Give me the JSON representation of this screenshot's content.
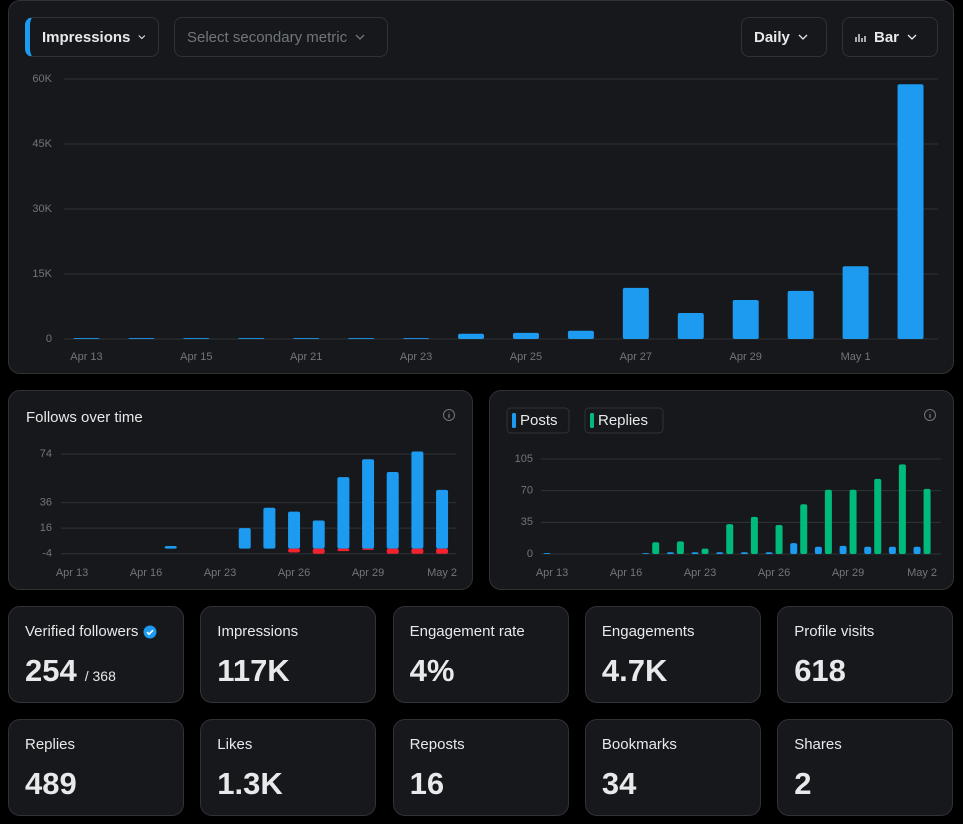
{
  "controls": {
    "primary_metric": "Impressions",
    "secondary_metric": "Select secondary metric",
    "interval": "Daily",
    "chart_type": "Bar"
  },
  "chart_data": [
    {
      "type": "bar",
      "categories": [
        "Apr 13",
        null,
        "Apr 15",
        null,
        "Apr 21",
        null,
        "Apr 23",
        null,
        "Apr 25",
        null,
        "Apr 27",
        null,
        "Apr 29",
        null,
        "May 1",
        null
      ],
      "values": [
        200,
        200,
        200,
        200,
        200,
        200,
        200,
        1200,
        1400,
        1900,
        11800,
        6000,
        9000,
        11100,
        16800,
        58800
      ],
      "color": "#1d9bf0",
      "ylim": [
        0,
        60000
      ],
      "yticks": [
        0,
        {
          "value": 15000,
          "label": "15K"
        },
        {
          "value": 30000,
          "label": "30K"
        },
        {
          "value": 45000,
          "label": "45K"
        },
        {
          "value": 60000,
          "label": "60K"
        }
      ],
      "grid": true
    },
    {
      "type": "bar",
      "title": "Follows over time",
      "stacked": true,
      "categories": [
        "Apr 13",
        null,
        null,
        "Apr 16",
        null,
        null,
        "Apr 23",
        null,
        null,
        "Apr 26",
        null,
        null,
        "Apr 29",
        null,
        null,
        "May 2"
      ],
      "series": [
        {
          "color": "#1d9bf0",
          "values": [
            0,
            0,
            0,
            0,
            2,
            0,
            0,
            16,
            32,
            29,
            22,
            56,
            70,
            60,
            76,
            46
          ]
        },
        {
          "color": "#f4212e",
          "values": [
            0,
            0,
            0,
            0,
            0,
            0,
            0,
            0,
            0,
            -3,
            -4,
            -2,
            -1,
            -4,
            -4,
            -4
          ]
        }
      ],
      "ylim": [
        -5,
        78
      ],
      "yticks": [
        -4,
        16,
        36,
        74
      ],
      "grid": true
    },
    {
      "type": "bar",
      "legend": "top-left",
      "categories": [
        "Apr 13",
        null,
        null,
        "Apr 16",
        null,
        null,
        "Apr 23",
        null,
        null,
        "Apr 26",
        null,
        null,
        "Apr 29",
        null,
        null,
        "May 2"
      ],
      "series": [
        {
          "name": "Posts",
          "color": "#1d9bf0",
          "values": [
            1,
            0,
            0,
            0,
            1,
            2,
            2,
            2,
            2,
            2,
            12,
            8,
            9,
            8,
            8,
            8
          ]
        },
        {
          "name": "Replies",
          "color": "#00ba7c",
          "values": [
            0,
            0,
            0,
            0,
            13,
            14,
            6,
            33,
            41,
            32,
            55,
            71,
            71,
            83,
            99,
            72
          ]
        }
      ],
      "ylim": [
        0,
        105
      ],
      "yticks": [
        0,
        35,
        70,
        105
      ],
      "grid": true
    }
  ],
  "stats": [
    {
      "label": "Verified followers",
      "value": "254",
      "total": "/ 368"
    },
    {
      "label": "Impressions",
      "value": "117K"
    },
    {
      "label": "Engagement rate",
      "value": "4%"
    },
    {
      "label": "Engagements",
      "value": "4.7K"
    },
    {
      "label": "Profile visits",
      "value": "618"
    },
    {
      "label": "Replies",
      "value": "489"
    },
    {
      "label": "Likes",
      "value": "1.3K"
    },
    {
      "label": "Reposts",
      "value": "16"
    },
    {
      "label": "Bookmarks",
      "value": "34"
    },
    {
      "label": "Shares",
      "value": "2"
    }
  ]
}
